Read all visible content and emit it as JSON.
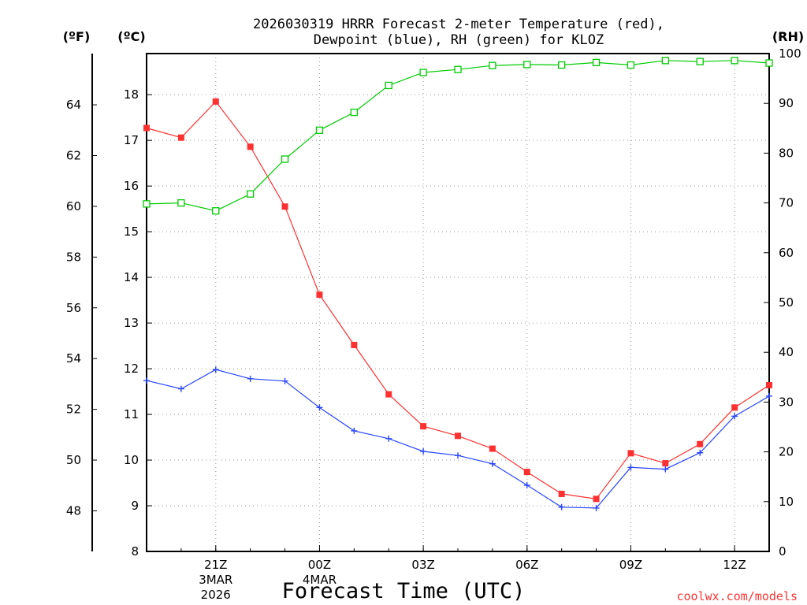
{
  "chart_data": {
    "type": "line",
    "title_line1": "2026030319 HRRR Forecast 2-meter Temperature (red),",
    "title_line2": "Dewpoint (blue), RH (green) for KLOZ",
    "xlabel": "Forecast Time (UTC)",
    "watermark": "coolwx.com/models",
    "axis_unit_labels": {
      "fahrenheit": "(ºF)",
      "celsius": "(ºC)",
      "rh": "(RH)"
    },
    "x_hours": [
      0,
      1,
      2,
      3,
      4,
      5,
      6,
      7,
      8,
      9,
      10,
      11,
      12,
      13,
      14,
      15,
      16,
      17,
      18
    ],
    "x_range": [
      0,
      18
    ],
    "x_ticks": [
      {
        "hour": 2,
        "label": "21Z",
        "sub1": "3MAR",
        "sub2": "2026"
      },
      {
        "hour": 5,
        "label": "00Z",
        "sub1": "4MAR",
        "sub2": ""
      },
      {
        "hour": 8,
        "label": "03Z",
        "sub1": "",
        "sub2": ""
      },
      {
        "hour": 11,
        "label": "06Z",
        "sub1": "",
        "sub2": ""
      },
      {
        "hour": 14,
        "label": "09Z",
        "sub1": "",
        "sub2": ""
      },
      {
        "hour": 17,
        "label": "12Z",
        "sub1": "",
        "sub2": ""
      }
    ],
    "celsius_axis": {
      "range": [
        8,
        18.9
      ],
      "ticks": [
        8,
        9,
        10,
        11,
        12,
        13,
        14,
        15,
        16,
        17,
        18
      ]
    },
    "fahrenheit_ticks": [
      48,
      50,
      52,
      54,
      56,
      58,
      60,
      62,
      64
    ],
    "rh_axis": {
      "range": [
        0,
        100
      ],
      "ticks": [
        0,
        10,
        20,
        30,
        40,
        50,
        60,
        70,
        80,
        90,
        100
      ]
    },
    "series": [
      {
        "name": "Temperature",
        "unit": "C",
        "axis": "celsius",
        "color": "#ff3030",
        "marker": "filled-square",
        "values": [
          17.27,
          17.06,
          17.85,
          16.86,
          15.55,
          13.62,
          12.52,
          11.44,
          10.74,
          10.53,
          10.25,
          9.74,
          9.26,
          9.15,
          10.15,
          9.93,
          10.35,
          11.15,
          11.64
        ]
      },
      {
        "name": "Dewpoint",
        "unit": "C",
        "axis": "celsius",
        "color": "#2846ff",
        "marker": "plus",
        "values": [
          11.74,
          11.56,
          11.98,
          11.78,
          11.73,
          11.15,
          10.64,
          10.47,
          10.19,
          10.1,
          9.92,
          9.45,
          8.97,
          8.95,
          9.84,
          9.8,
          10.16,
          10.96,
          11.4
        ]
      },
      {
        "name": "RH",
        "unit": "%",
        "axis": "rh",
        "color": "#00cc00",
        "marker": "open-square",
        "values": [
          69.8,
          70.0,
          68.4,
          71.8,
          78.8,
          84.6,
          88.2,
          93.6,
          96.2,
          96.8,
          97.6,
          97.8,
          97.7,
          98.2,
          97.7,
          98.6,
          98.4,
          98.6,
          98.1
        ]
      }
    ]
  }
}
